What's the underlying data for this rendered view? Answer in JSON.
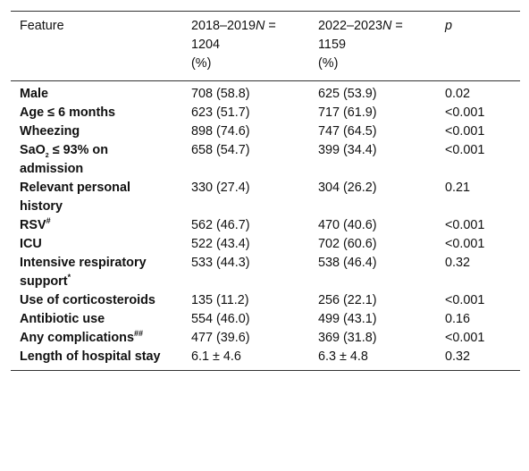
{
  "table": {
    "header": [
      {
        "text": "Feature"
      },
      {
        "years": "2018–2019",
        "n": "N",
        "count": " = 1204",
        "unit": "(%)"
      },
      {
        "years": "2022–2023",
        "n": "N",
        "count": " = 1159",
        "unit": "(%)"
      },
      {
        "italic": "p"
      }
    ],
    "rows": [
      {
        "feature": "Male",
        "cells": [
          "708 (58.8)",
          "625 (53.9)",
          "0.02"
        ]
      },
      {
        "feature": "Age ≤ 6 months",
        "cells": [
          "623 (51.7)",
          "717 (61.9)",
          "<0.001"
        ]
      },
      {
        "feature": "Wheezing",
        "cells": [
          "898 (74.6)",
          "747 (64.5)",
          "<0.001"
        ]
      },
      {
        "feature": "SaO",
        "sub": "2",
        "rest": " ≤ 93% on admission",
        "cells": [
          "658 (54.7)",
          "399 (34.4)",
          "<0.001"
        ]
      },
      {
        "feature": "Relevant personal history",
        "cells": [
          "330 (27.4)",
          "304 (26.2)",
          "0.21"
        ]
      },
      {
        "feature": "RSV",
        "sup": "#",
        "cells": [
          "562 (46.7)",
          "470 (40.6)",
          "<0.001"
        ]
      },
      {
        "feature": "ICU",
        "cells": [
          "522 (43.4)",
          "702 (60.6)",
          "<0.001"
        ]
      },
      {
        "feature": "Intensive respiratory support",
        "sup": "*",
        "cells": [
          "533 (44.3)",
          "538 (46.4)",
          "0.32"
        ]
      },
      {
        "feature": "Use of corticosteroids",
        "cells": [
          "135 (11.2)",
          "256 (22.1)",
          "<0.001"
        ]
      },
      {
        "feature": "Antibiotic use",
        "cells": [
          "554 (46.0)",
          "499 (43.1)",
          "0.16"
        ]
      },
      {
        "feature": "Any complications",
        "sup": "##",
        "cells": [
          "477 (39.6)",
          "369 (31.8)",
          "<0.001"
        ]
      },
      {
        "feature": "Length of hospital stay",
        "cells": [
          "6.1 ± 4.6",
          "6.3 ± 4.8",
          "0.32"
        ]
      }
    ]
  }
}
